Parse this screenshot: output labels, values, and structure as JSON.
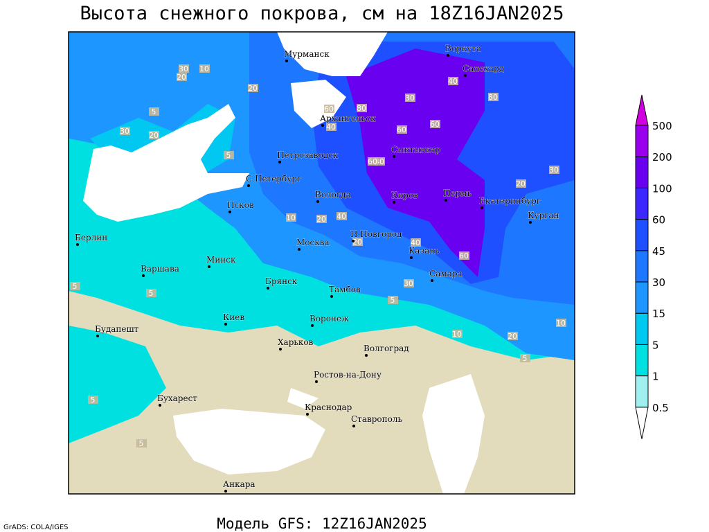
{
  "header": {
    "title": "Высота снежного покрова, см на 18Z16JAN2025"
  },
  "footer": {
    "model": "Модель GFS: 12Z16JAN2025",
    "credit": "GrADS: COLA/IGES"
  },
  "legend": {
    "levels": [
      0.5,
      1,
      5,
      15,
      30,
      45,
      60,
      100,
      200,
      500
    ],
    "colors": [
      "#ffffff",
      "#a0f0f0",
      "#00e0e0",
      "#00c8f0",
      "#1e96ff",
      "#1e78ff",
      "#1e50ff",
      "#3c28ff",
      "#6a00f0",
      "#9900ee",
      "#d000e0"
    ]
  },
  "cities": [
    "Мурманск",
    "Воркута",
    "Салехард",
    "Архангельск",
    "Петрозаводск",
    "Сыктывкар",
    "С.Петербург",
    "Вологда",
    "Киров",
    "Пермь",
    "Екатеринбург",
    "Курган",
    "Псков",
    "Берлин",
    "Москва",
    "Н.Новгород",
    "Казань",
    "Минск",
    "Варшава",
    "Самара",
    "Брянск",
    "Тамбов",
    "Киев",
    "Воронеж",
    "Будапешт",
    "Харьков",
    "Волгоград",
    "Ростов-на-Дону",
    "Бухарест",
    "Краснодар",
    "Ставрополь",
    "Анкара"
  ],
  "contour_labels": [
    "30",
    "10",
    "20",
    "20",
    "5",
    "30",
    "20",
    "5",
    "60",
    "80",
    "30",
    "80",
    "60",
    "40",
    "40",
    "60",
    "60",
    "40",
    "30",
    "20",
    "20",
    "40",
    "10",
    "20",
    "40",
    "60",
    "30",
    "10",
    "10",
    "20",
    "5",
    "5",
    "5",
    "5",
    "5",
    "5"
  ]
}
